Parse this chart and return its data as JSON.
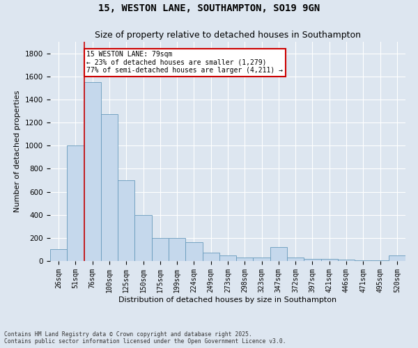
{
  "title_line1": "15, WESTON LANE, SOUTHAMPTON, SO19 9GN",
  "title_line2": "Size of property relative to detached houses in Southampton",
  "xlabel": "Distribution of detached houses by size in Southampton",
  "ylabel": "Number of detached properties",
  "bar_values": [
    100,
    1000,
    1550,
    1275,
    700,
    400,
    200,
    200,
    160,
    75,
    50,
    30,
    30,
    120,
    30,
    20,
    20,
    10,
    5,
    5,
    50
  ],
  "categories": [
    "26sqm",
    "51sqm",
    "76sqm",
    "100sqm",
    "125sqm",
    "150sqm",
    "175sqm",
    "199sqm",
    "224sqm",
    "249sqm",
    "273sqm",
    "298sqm",
    "323sqm",
    "347sqm",
    "372sqm",
    "397sqm",
    "421sqm",
    "446sqm",
    "471sqm",
    "495sqm",
    "520sqm"
  ],
  "bar_color": "#c5d8ec",
  "bar_edge_color": "#6699bb",
  "background_color": "#dde6f0",
  "grid_color": "#ffffff",
  "redline_bar_index": 2,
  "annotation_text": "15 WESTON LANE: 79sqm\n← 23% of detached houses are smaller (1,279)\n77% of semi-detached houses are larger (4,211) →",
  "annotation_box_color": "#cc0000",
  "ylim": [
    0,
    1900
  ],
  "yticks": [
    0,
    200,
    400,
    600,
    800,
    1000,
    1200,
    1400,
    1600,
    1800
  ],
  "footer_line1": "Contains HM Land Registry data © Crown copyright and database right 2025.",
  "footer_line2": "Contains public sector information licensed under the Open Government Licence v3.0."
}
